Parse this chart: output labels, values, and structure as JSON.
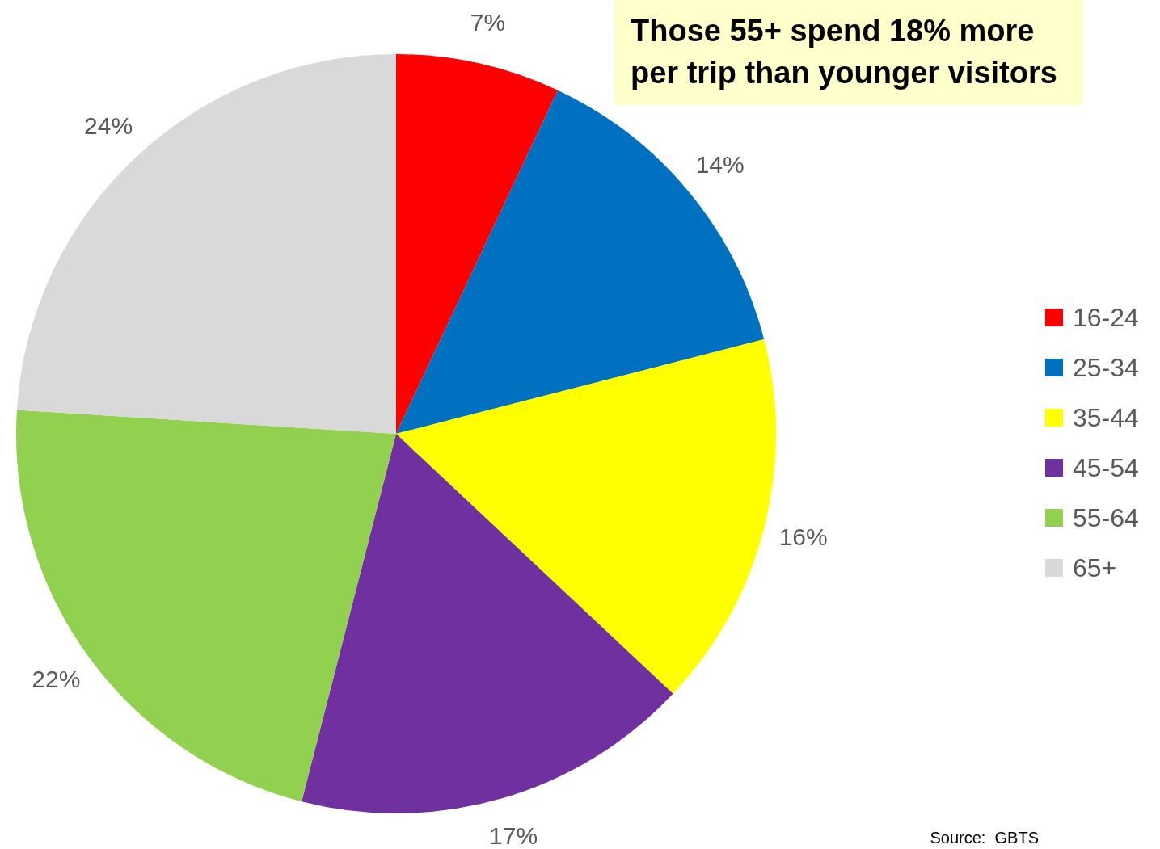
{
  "chart_data": {
    "type": "pie",
    "title": "Those 55+ spend 18% more per trip than younger visitors",
    "categories": [
      "16-24",
      "25-34",
      "35-44",
      "45-54",
      "55-64",
      "65+"
    ],
    "values": [
      7,
      14,
      16,
      17,
      22,
      24
    ],
    "colors": [
      "#ff0000",
      "#0070c0",
      "#ffff00",
      "#7030a0",
      "#92d050",
      "#d9d9d9"
    ],
    "value_labels": [
      "7%",
      "14%",
      "16%",
      "17%",
      "22%",
      "24%"
    ],
    "legend": "right",
    "annotations": [
      "Source:  GBTS"
    ]
  }
}
